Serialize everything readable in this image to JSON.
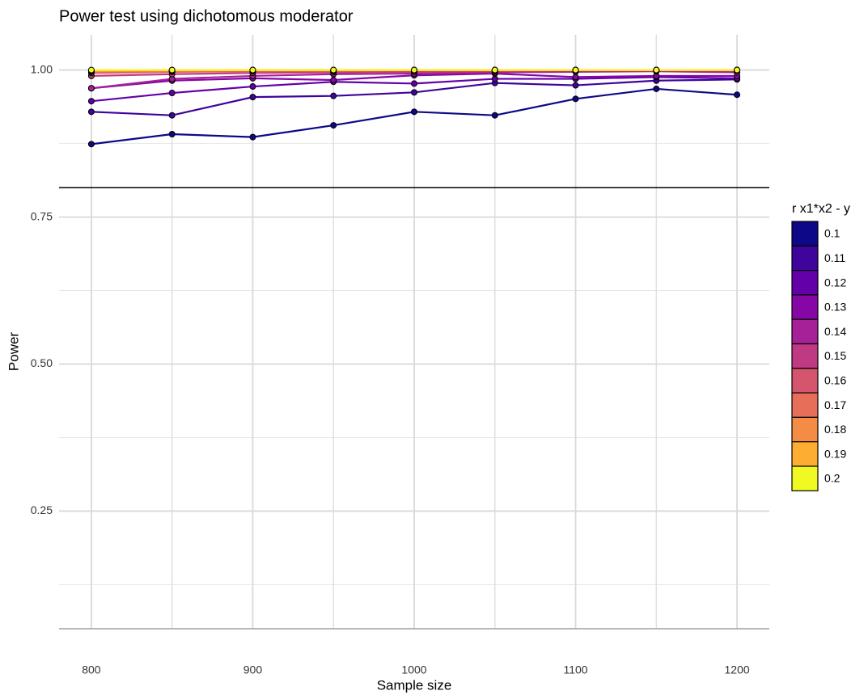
{
  "chart_data": {
    "type": "line",
    "title": "Power test using dichotomous moderator",
    "x_label": "Sample size",
    "y_label": "Power",
    "legend_title": "r x1*x2 - y",
    "x": [
      800,
      850,
      900,
      950,
      1000,
      1050,
      1100,
      1150,
      1200
    ],
    "series": [
      {
        "name": "0.1",
        "color": "#0d0887",
        "values": [
          0.874,
          0.891,
          0.886,
          0.906,
          0.929,
          0.923,
          0.951,
          0.968,
          0.958
        ]
      },
      {
        "name": "0.11",
        "color": "#3e049c",
        "values": [
          0.929,
          0.923,
          0.954,
          0.956,
          0.962,
          0.978,
          0.974,
          0.982,
          0.984
        ]
      },
      {
        "name": "0.12",
        "color": "#6300a7",
        "values": [
          0.947,
          0.961,
          0.972,
          0.98,
          0.977,
          0.985,
          0.985,
          0.988,
          0.986
        ]
      },
      {
        "name": "0.13",
        "color": "#8606a6",
        "values": [
          0.969,
          0.982,
          0.986,
          0.983,
          0.991,
          0.994,
          0.988,
          0.99,
          0.99
        ]
      },
      {
        "name": "0.14",
        "color": "#a62098",
        "values": [
          0.969,
          0.985,
          0.99,
          0.993,
          0.994,
          0.996,
          0.997,
          0.998,
          0.996
        ]
      },
      {
        "name": "0.15",
        "color": "#c03a83",
        "values": [
          0.99,
          0.993,
          0.995,
          0.996,
          0.997,
          0.998,
          0.999,
          0.999,
          0.999
        ]
      },
      {
        "name": "0.16",
        "color": "#d5546e",
        "values": [
          0.995,
          0.997,
          0.998,
          0.998,
          0.999,
          0.999,
          1.0,
          1.0,
          1.0
        ]
      },
      {
        "name": "0.17",
        "color": "#e76f5a",
        "values": [
          0.997,
          0.998,
          0.999,
          0.999,
          1.0,
          1.0,
          1.0,
          1.0,
          1.0
        ]
      },
      {
        "name": "0.18",
        "color": "#f58c46",
        "values": [
          0.998,
          0.999,
          1.0,
          1.0,
          1.0,
          1.0,
          1.0,
          1.0,
          1.0
        ]
      },
      {
        "name": "0.19",
        "color": "#fdad32",
        "values": [
          0.999,
          1.0,
          1.0,
          1.0,
          1.0,
          1.0,
          1.0,
          1.0,
          1.0
        ]
      },
      {
        "name": "0.2",
        "color": "#f0f921",
        "values": [
          1.0,
          1.0,
          1.0,
          1.0,
          1.0,
          1.0,
          1.0,
          1.0,
          1.0
        ]
      }
    ],
    "xlim": [
      780,
      1220
    ],
    "ylim": [
      0.05,
      1.06
    ],
    "xticks": [
      800,
      900,
      1000,
      1100,
      1200
    ],
    "yticks": [
      0.25,
      {
        "value": 0.5,
        "label": "0.50"
      },
      0.75,
      {
        "value": 1,
        "label": "1.00"
      }
    ],
    "xminorticks": [
      850,
      950,
      1050,
      1150
    ],
    "yminorticks": [
      0.125,
      0.375,
      0.625,
      0.875
    ],
    "hlines": [
      {
        "value": 0.8,
        "color": "#000000"
      },
      {
        "value": 0.05,
        "color": "#a0a0a0"
      }
    ],
    "grid": true
  }
}
